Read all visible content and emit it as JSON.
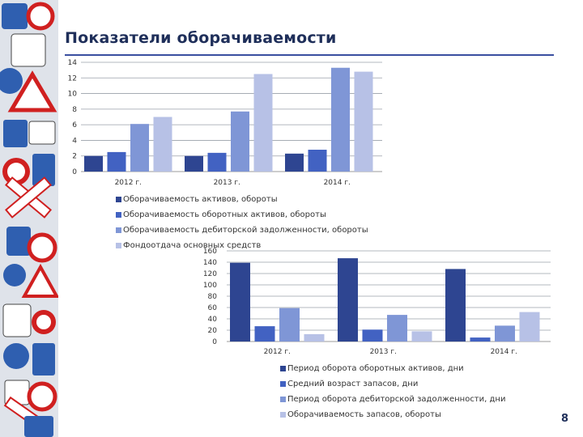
{
  "slide": {
    "title": "Показатели оборачиваемости",
    "number": "8"
  },
  "colors": {
    "title": "#1f2f5a",
    "rule": "#3a4fa0",
    "series": [
      "#2e4591",
      "#4262c2",
      "#7f96d6",
      "#b7c1e6"
    ]
  },
  "chart_data": [
    {
      "type": "bar",
      "title": "",
      "xlabel": "",
      "ylabel": "",
      "categories": [
        "2012 г.",
        "2013 г.",
        "2014 г."
      ],
      "ylim": [
        0,
        14
      ],
      "yticks": [
        "0",
        "2",
        "4",
        "6",
        "8",
        "10",
        "12",
        "14"
      ],
      "grid": true,
      "legend_position": "bottom",
      "series": [
        {
          "name": "Оборачиваемость активов, обороты",
          "values": [
            2,
            2,
            2.3
          ]
        },
        {
          "name": "Оборачиваемость оборотных активов, обороты",
          "values": [
            2.5,
            2.4,
            2.8
          ]
        },
        {
          "name": "Оборачиваемость дебиторской задолженности, обороты",
          "values": [
            6.1,
            7.7,
            13.3
          ]
        },
        {
          "name": "Фондоотдача основных средств",
          "values": [
            7,
            12.5,
            12.8
          ]
        }
      ]
    },
    {
      "type": "bar",
      "title": "",
      "xlabel": "",
      "ylabel": "",
      "categories": [
        "2012 г.",
        "2013 г.",
        "2014 г."
      ],
      "ylim": [
        0,
        160
      ],
      "yticks": [
        "0",
        "20",
        "40",
        "60",
        "80",
        "100",
        "120",
        "140",
        "160"
      ],
      "grid": true,
      "legend_position": "bottom",
      "series": [
        {
          "name": "Период оборота оборотных активов, дни",
          "values": [
            139,
            147,
            128
          ]
        },
        {
          "name": "Средний возраст запасов, дни",
          "values": [
            27,
            21,
            7
          ]
        },
        {
          "name": "Период оборота дебиторской задолженности, дни",
          "values": [
            59,
            47,
            28
          ]
        },
        {
          "name": "Оборачиваемость запасов, обороты",
          "values": [
            13,
            18,
            52
          ]
        }
      ]
    }
  ]
}
